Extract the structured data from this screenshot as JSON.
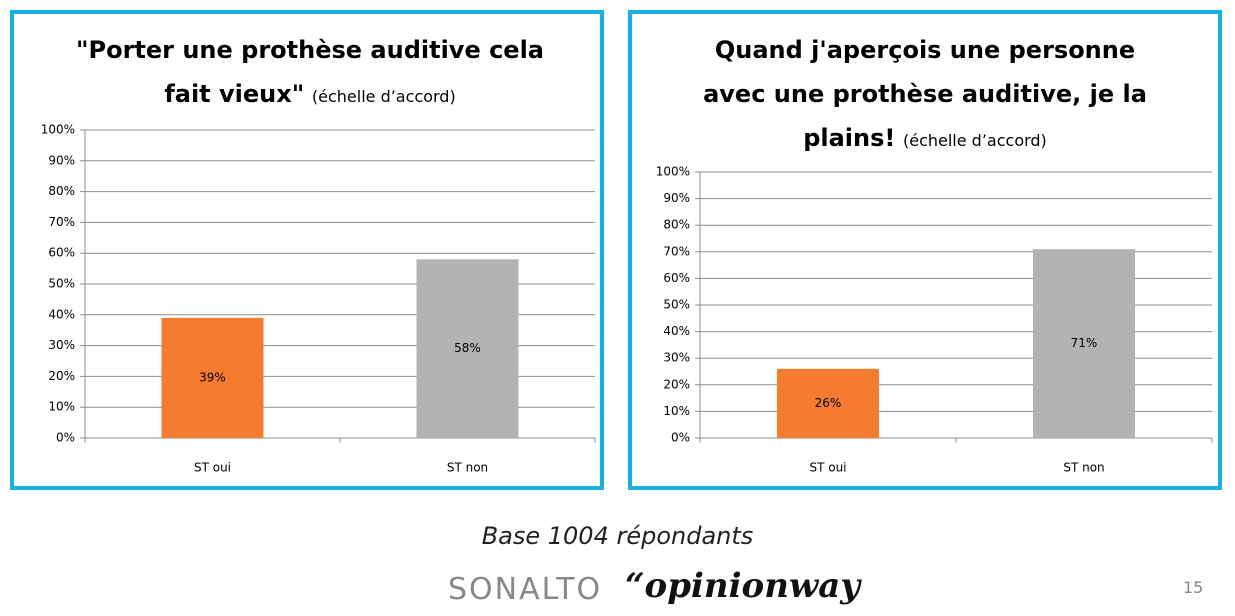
{
  "chart_data": [
    {
      "type": "bar",
      "title": "\"Porter une prothèse auditive cela fait vieux\"",
      "subtitle": "(échelle d’accord)",
      "categories": [
        "ST oui",
        "ST non"
      ],
      "values": [
        39,
        58
      ],
      "value_labels": [
        "39%",
        "58%"
      ],
      "colors": [
        "#f47b30",
        "#b3b3b3"
      ],
      "ylim": [
        0,
        100
      ],
      "yticks": [
        {
          "value": 0,
          "label": "0%"
        },
        {
          "value": 10,
          "label": "10%"
        },
        {
          "value": 20,
          "label": "20%"
        },
        {
          "value": 30,
          "label": "30%"
        },
        {
          "value": 40,
          "label": "40%"
        },
        {
          "value": 50,
          "label": "50%"
        },
        {
          "value": 60,
          "label": "60%"
        },
        {
          "value": 70,
          "label": "70%"
        },
        {
          "value": 80,
          "label": "80%"
        },
        {
          "value": 90,
          "label": "90%"
        },
        {
          "value": 100,
          "label": "100%"
        }
      ],
      "grid": true
    },
    {
      "type": "bar",
      "title": "Quand j'aperçois une personne avec une prothèse auditive, je la plains!",
      "subtitle": "(échelle d’accord)",
      "categories": [
        "ST oui",
        "ST non"
      ],
      "values": [
        26,
        71
      ],
      "value_labels": [
        "26%",
        "71%"
      ],
      "colors": [
        "#f47b30",
        "#b3b3b3"
      ],
      "ylim": [
        0,
        100
      ],
      "yticks": [
        {
          "value": 0,
          "label": "0%"
        },
        {
          "value": 10,
          "label": "10%"
        },
        {
          "value": 20,
          "label": "20%"
        },
        {
          "value": 30,
          "label": "30%"
        },
        {
          "value": 40,
          "label": "40%"
        },
        {
          "value": 50,
          "label": "50%"
        },
        {
          "value": 60,
          "label": "60%"
        },
        {
          "value": 70,
          "label": "70%"
        },
        {
          "value": 80,
          "label": "80%"
        },
        {
          "value": 90,
          "label": "90%"
        },
        {
          "value": 100,
          "label": "100%"
        }
      ],
      "grid": true
    }
  ],
  "footer": {
    "base": "Base 1004 répondants",
    "logo_left": "SONALTO",
    "logo_right": "“opinionway",
    "page_number": "15"
  }
}
